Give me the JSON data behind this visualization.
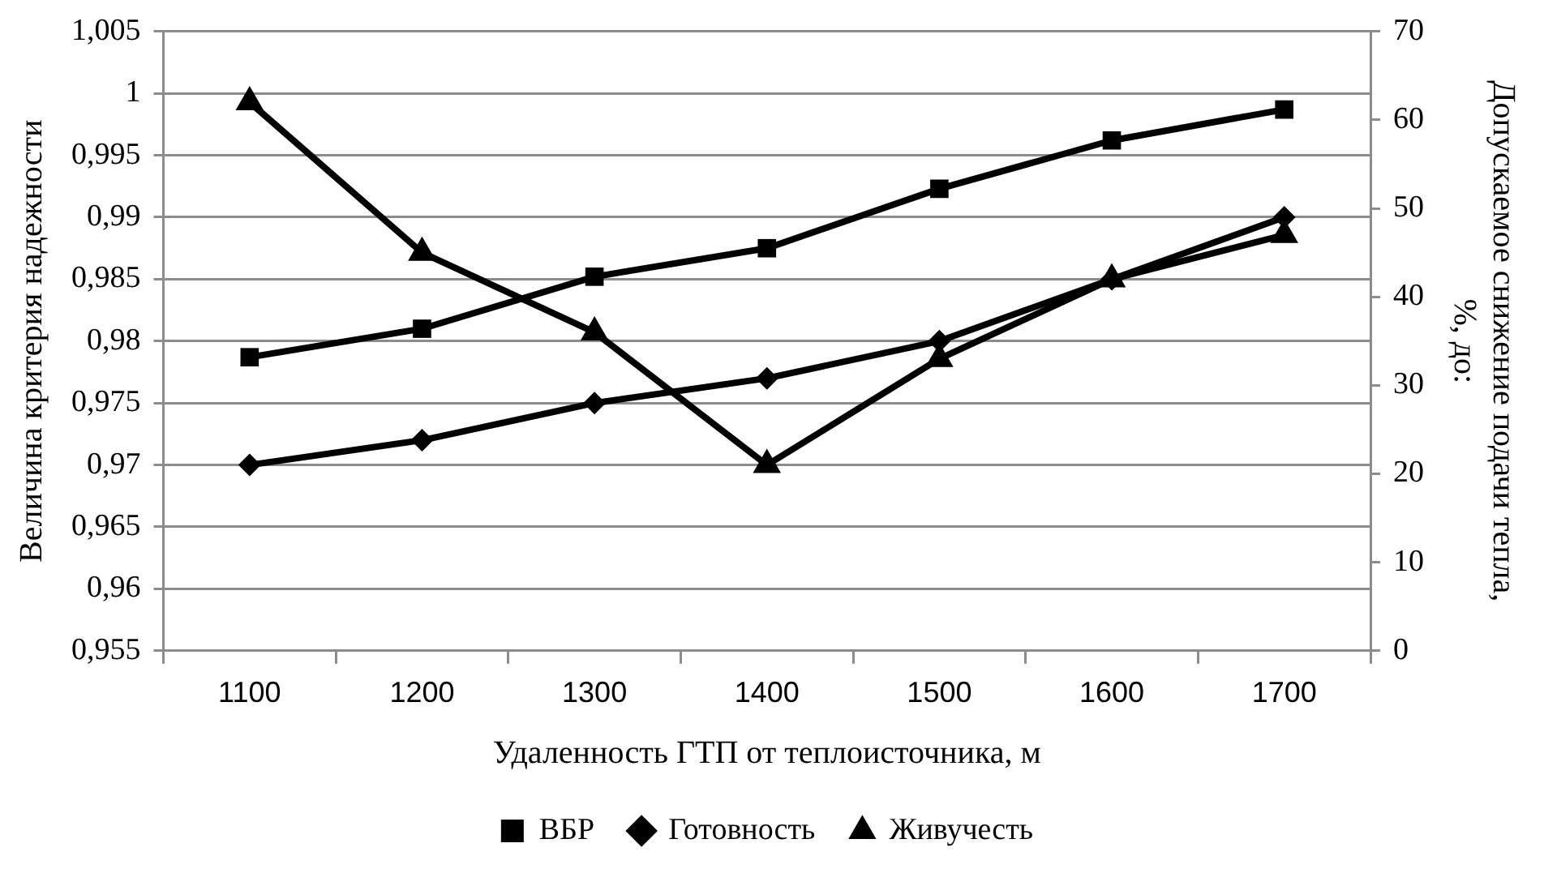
{
  "chart_data": {
    "type": "line",
    "xlabel": "Удаленность ГТП от теплоисточника, м",
    "ylabel": "Величина критерия надежности",
    "y2label": "Допускаемое снижение подачи тепла, %, до:",
    "categories": [
      "1100",
      "1200",
      "1300",
      "1400",
      "1500",
      "1600",
      "1700"
    ],
    "series": [
      {
        "name": "ВБР",
        "color": "#000000",
        "marker": "square",
        "values": [
          0.9787,
          0.981,
          0.9852,
          0.9875,
          0.9923,
          0.9962,
          0.9987
        ]
      },
      {
        "name": "Готовность",
        "color": "#000000",
        "marker": "diamond",
        "values": [
          0.97,
          0.972,
          0.975,
          0.977,
          0.98,
          0.985,
          0.99
        ]
      },
      {
        "name": "Живучесть",
        "color": "#000000",
        "marker": "triangle",
        "axis": "y2",
        "values": [
          62,
          45,
          36,
          21,
          33,
          42,
          47
        ]
      }
    ],
    "ylim": [
      0.955,
      1.005
    ],
    "yticks": [
      {
        "value": 0.955,
        "label": "0,955"
      },
      {
        "value": 0.96,
        "label": "0,96"
      },
      {
        "value": 0.965,
        "label": "0,965"
      },
      {
        "value": 0.97,
        "label": "0,97"
      },
      {
        "value": 0.975,
        "label": "0,975"
      },
      {
        "value": 0.98,
        "label": "0,98"
      },
      {
        "value": 0.985,
        "label": "0,985"
      },
      {
        "value": 0.99,
        "label": "0,99"
      },
      {
        "value": 0.995,
        "label": "0,995"
      },
      {
        "value": 1,
        "label": "1"
      },
      {
        "value": 1.005,
        "label": "1,005"
      }
    ],
    "y2lim": [
      0,
      70
    ],
    "y2ticks": [
      0,
      10,
      20,
      30,
      40,
      50,
      60,
      70
    ],
    "grid": "y",
    "legend": "bottom",
    "line_style": "solid"
  }
}
